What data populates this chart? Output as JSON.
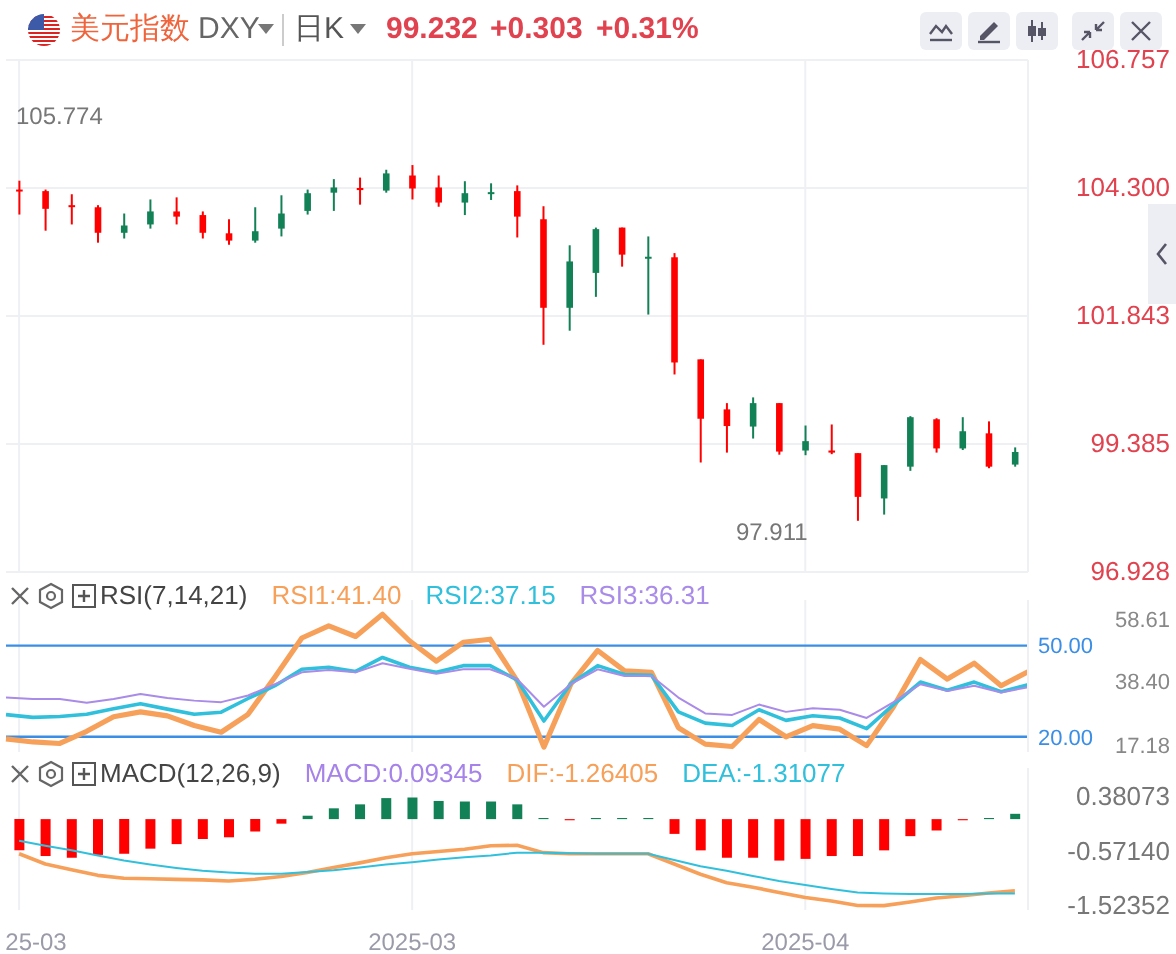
{
  "chart_data": [
    {
      "type": "candlestick",
      "title": "美元指数",
      "subtitle": "DXY",
      "annotations": [
        "日K",
        "99.232",
        "+0.303",
        "+0.31%",
        "105.774",
        "97.911"
      ],
      "ohlc": [
        [
          104.27,
          104.44,
          103.79,
          104.25
        ],
        [
          104.24,
          104.27,
          103.48,
          103.9
        ],
        [
          103.97,
          104.18,
          103.6,
          103.94
        ],
        [
          103.93,
          103.97,
          103.25,
          103.44
        ],
        [
          103.44,
          103.81,
          103.33,
          103.58
        ],
        [
          103.6,
          104.08,
          103.52,
          103.85
        ],
        [
          103.85,
          104.12,
          103.6,
          103.75
        ],
        [
          103.78,
          103.85,
          103.33,
          103.44
        ],
        [
          103.43,
          103.7,
          103.21,
          103.29
        ],
        [
          103.29,
          103.93,
          103.25,
          103.47
        ],
        [
          103.52,
          104.16,
          103.37,
          103.81
        ],
        [
          103.86,
          104.27,
          103.79,
          104.2
        ],
        [
          104.21,
          104.47,
          103.86,
          104.31
        ],
        [
          104.3,
          104.5,
          103.98,
          104.26
        ],
        [
          104.25,
          104.65,
          104.21,
          104.58
        ],
        [
          104.54,
          104.74,
          104.08,
          104.29
        ],
        [
          104.31,
          104.54,
          103.94,
          104.02
        ],
        [
          104.02,
          104.43,
          103.78,
          104.2
        ],
        [
          104.2,
          104.39,
          104.07,
          104.22
        ],
        [
          104.24,
          104.35,
          103.35,
          103.75
        ],
        [
          103.7,
          103.95,
          101.29,
          102.0
        ],
        [
          102.0,
          103.2,
          101.56,
          102.89
        ],
        [
          102.67,
          103.54,
          102.21,
          103.51
        ],
        [
          103.54,
          103.54,
          102.79,
          103.02
        ],
        [
          102.96,
          103.37,
          101.87,
          102.98
        ],
        [
          102.97,
          103.05,
          100.72,
          100.95
        ],
        [
          101.01,
          101.01,
          99.03,
          99.87
        ],
        [
          100.05,
          100.17,
          99.22,
          99.73
        ],
        [
          99.72,
          100.28,
          99.49,
          100.17
        ],
        [
          100.17,
          100.17,
          99.18,
          99.24
        ],
        [
          99.26,
          99.74,
          99.17,
          99.44
        ],
        [
          99.26,
          99.76,
          99.19,
          99.22
        ],
        [
          99.21,
          99.21,
          97.911,
          98.37
        ],
        [
          98.34,
          98.98,
          98.03,
          98.98
        ],
        [
          98.95,
          99.92,
          98.87,
          99.9
        ],
        [
          99.86,
          99.88,
          99.22,
          99.3
        ],
        [
          99.3,
          99.9,
          99.27,
          99.63
        ],
        [
          99.59,
          99.82,
          98.92,
          98.95
        ],
        [
          98.99,
          99.32,
          98.95,
          99.232
        ]
      ],
      "colors": [
        "#ff0000",
        "#ff0000",
        "#ff0000",
        "#ff0000",
        "#138156",
        "#138156",
        "#ff0000",
        "#ff0000",
        "#ff0000",
        "#138156",
        "#138156",
        "#138156",
        "#138156",
        "#ff0000",
        "#138156",
        "#ff0000",
        "#ff0000",
        "#138156",
        "#138156",
        "#ff0000",
        "#ff0000",
        "#138156",
        "#138156",
        "#ff0000",
        "#138156",
        "#ff0000",
        "#ff0000",
        "#ff0000",
        "#138156",
        "#ff0000",
        "#138156",
        "#ff0000",
        "#ff0000",
        "#138156",
        "#138156",
        "#ff0000",
        "#138156",
        "#ff0000",
        "#138156"
      ],
      "ylim": [
        96.928,
        106.757
      ],
      "yticks": [
        {
          "value": 106.757,
          "label": "106.757"
        },
        {
          "value": 104.3,
          "label": "104.300"
        },
        101.843,
        99.385,
        96.928
      ],
      "grid": true,
      "tick_labels": "y"
    },
    {
      "type": "line",
      "title": "RSI(7,14,21)",
      "series": [
        {
          "name": "RSI1:41.40",
          "color": "#f6a05a",
          "values": [
            19.3,
            18.3,
            17.8,
            21.8,
            26.6,
            28.2,
            26.9,
            23.7,
            21.5,
            27.4,
            39.7,
            52.5,
            56.5,
            53.0,
            60.3,
            51.6,
            44.9,
            51.1,
            52.1,
            38.5,
            16.6,
            37.3,
            48.4,
            41.7,
            41.2,
            23.0,
            17.6,
            16.8,
            25.7,
            20.0,
            23.7,
            22.5,
            17.1,
            29.9,
            45.4,
            39.0,
            44.2,
            36.8,
            41.4
          ]
        },
        {
          "name": "RSI2:37.15",
          "color": "#31c0dc",
          "values": [
            27.3,
            26.4,
            26.7,
            27.4,
            29.2,
            30.9,
            29.1,
            27.4,
            28.1,
            32.6,
            36.8,
            42.2,
            42.9,
            41.5,
            46.1,
            42.9,
            41.2,
            43.4,
            43.4,
            38.7,
            25.2,
            37.5,
            43.4,
            40.5,
            40.2,
            28.2,
            24.5,
            23.7,
            28.9,
            25.4,
            26.9,
            26.2,
            22.7,
            30.6,
            38.0,
            35.3,
            38.0,
            34.8,
            37.15
          ]
        },
        {
          "name": "RSI3:36.31",
          "color": "#a98be8",
          "values": [
            32.9,
            32.4,
            32.4,
            31.2,
            32.4,
            34.1,
            32.8,
            31.9,
            31.4,
            33.6,
            37.3,
            41.2,
            42.0,
            41.2,
            44.2,
            42.4,
            40.7,
            42.2,
            42.2,
            39.0,
            29.9,
            37.3,
            42.2,
            40.0,
            40.0,
            32.9,
            27.7,
            27.2,
            30.6,
            28.2,
            29.4,
            28.9,
            26.2,
            31.4,
            37.3,
            35.1,
            36.8,
            34.6,
            36.31
          ]
        }
      ],
      "ylim": [
        15,
        65
      ],
      "yticks": [
        58.61,
        {
          "value": 38.4,
          "label": "38.40"
        },
        17.18
      ],
      "ref_lines": [
        {
          "axis": "y",
          "value": 50,
          "label": "50.00",
          "color": "#3a8ee6"
        },
        {
          "axis": "y",
          "value": 20,
          "label": "20.00",
          "color": "#3a8ee6"
        }
      ],
      "grid": "x",
      "legend": "top",
      "tick_labels": "y"
    },
    {
      "type": "bar",
      "title": "MACD(12,26,9)",
      "categories": [
        "25-03",
        null,
        null,
        null,
        null,
        null,
        null,
        null,
        null,
        null,
        null,
        null,
        null,
        null,
        null,
        "2025-03",
        null,
        null,
        null,
        null,
        null,
        null,
        null,
        null,
        null,
        null,
        null,
        null,
        null,
        null,
        "2025-04",
        null,
        null,
        null,
        null,
        null,
        null,
        null,
        null
      ],
      "series": [
        {
          "name": "MACD:0.09345",
          "type": "bar",
          "values": [
            -0.55,
            -0.65,
            -0.68,
            -0.63,
            -0.61,
            -0.52,
            -0.44,
            -0.35,
            -0.32,
            -0.22,
            -0.08,
            0.06,
            0.19,
            0.26,
            0.37,
            0.38073,
            0.32,
            0.31,
            0.31,
            0.26,
            0.02,
            -0.02,
            0.02,
            0.02,
            0.02,
            -0.26,
            -0.55,
            -0.68,
            -0.68,
            -0.73,
            -0.7,
            -0.65,
            -0.65,
            -0.55,
            -0.3,
            -0.2,
            -0.02,
            0.02,
            0.09345
          ],
          "colors": [
            "#ff0000",
            "#ff0000",
            "#ff0000",
            "#ff0000",
            "#ff0000",
            "#ff0000",
            "#ff0000",
            "#ff0000",
            "#ff0000",
            "#ff0000",
            "#ff0000",
            "#138156",
            "#138156",
            "#138156",
            "#138156",
            "#138156",
            "#138156",
            "#138156",
            "#138156",
            "#138156",
            "#138156",
            "#ff0000",
            "#138156",
            "#138156",
            "#138156",
            "#ff0000",
            "#ff0000",
            "#ff0000",
            "#ff0000",
            "#ff0000",
            "#ff0000",
            "#ff0000",
            "#ff0000",
            "#ff0000",
            "#ff0000",
            "#ff0000",
            "#ff0000",
            "#138156",
            "#138156"
          ]
        },
        {
          "name": "DIF:-1.26405",
          "type": "line",
          "color": "#f6a05a",
          "values": [
            -0.61,
            -0.79,
            -0.89,
            -0.99,
            -1.04,
            -1.05,
            -1.06,
            -1.07,
            -1.09,
            -1.06,
            -1.01,
            -0.94,
            -0.85,
            -0.77,
            -0.68,
            -0.61,
            -0.57,
            -0.53,
            -0.47,
            -0.46,
            -0.59,
            -0.61,
            -0.61,
            -0.61,
            -0.61,
            -0.79,
            -0.97,
            -1.12,
            -1.2,
            -1.29,
            -1.38,
            -1.44,
            -1.52,
            -1.52352,
            -1.46,
            -1.39,
            -1.35,
            -1.3,
            -1.26405
          ]
        },
        {
          "name": "DEA:-1.31077",
          "type": "line",
          "color": "#31c0dc",
          "values": [
            -0.38,
            -0.47,
            -0.55,
            -0.64,
            -0.73,
            -0.8,
            -0.86,
            -0.91,
            -0.94,
            -0.96,
            -0.96,
            -0.93,
            -0.9,
            -0.85,
            -0.8,
            -0.76,
            -0.71,
            -0.67,
            -0.64,
            -0.59,
            -0.59,
            -0.6,
            -0.61,
            -0.61,
            -0.61,
            -0.72,
            -0.83,
            -0.91,
            -1.0,
            -1.09,
            -1.16,
            -1.23,
            -1.29,
            -1.31,
            -1.32,
            -1.32,
            -1.32,
            -1.31,
            -1.31077
          ]
        }
      ],
      "ylim": [
        -1.6,
        0.9
      ],
      "yticks": [
        {
          "value": 0.38073,
          "label": "0.38073"
        },
        {
          "value": -0.5714,
          "label": "-0.57140"
        },
        -1.52352
      ],
      "grid": "x",
      "legend": "top"
    }
  ]
}
